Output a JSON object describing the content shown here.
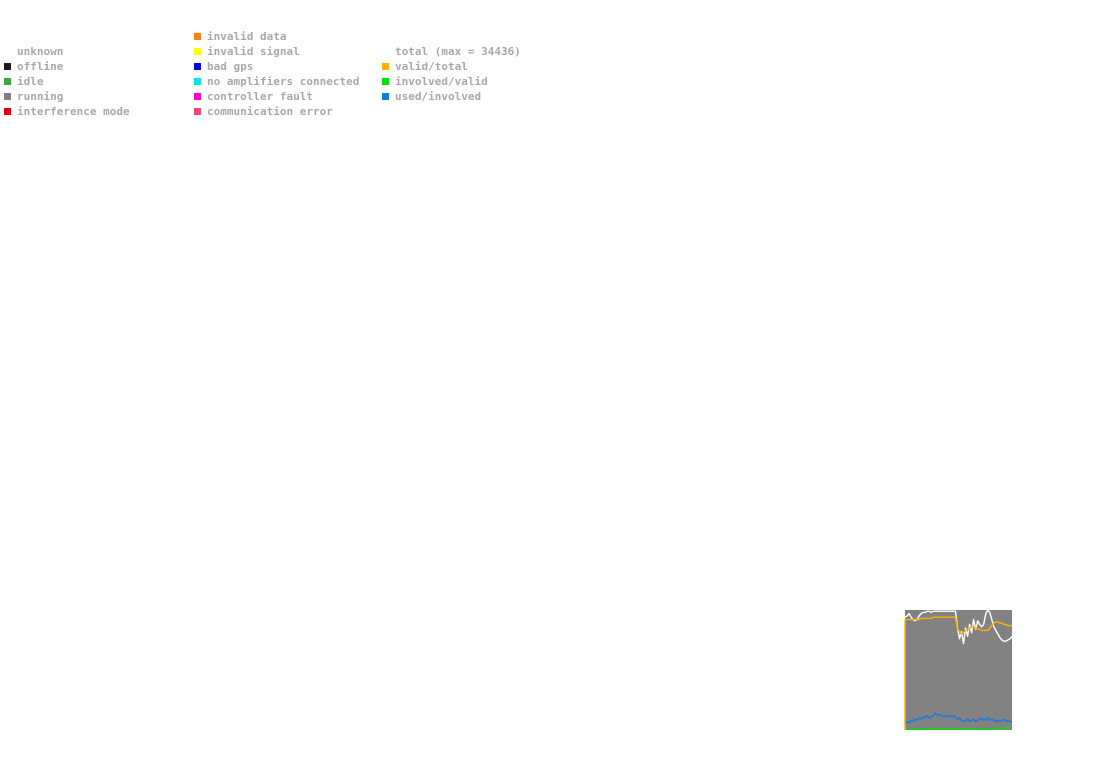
{
  "legend": {
    "status_column": [
      {
        "label": "unknown",
        "color": ""
      },
      {
        "label": "offline",
        "color": "#1a1a1a"
      },
      {
        "label": "idle",
        "color": "#3fa33f"
      },
      {
        "label": "running",
        "color": "#7f7f7f"
      },
      {
        "label": "interference mode",
        "color": "#e8000b"
      }
    ],
    "error_column": [
      {
        "label": "invalid data",
        "color": "#ff7f0e"
      },
      {
        "label": "invalid signal",
        "color": "#ffff00"
      },
      {
        "label": "bad gps",
        "color": "#0000e6"
      },
      {
        "label": "no amplifiers connected",
        "color": "#00e6e6"
      },
      {
        "label": "controller fault",
        "color": "#ff00cc"
      },
      {
        "label": "communication error",
        "color": "#f0457a"
      }
    ],
    "ratio_column": [
      {
        "label": "total (max = 34436)",
        "color": ""
      },
      {
        "label": "valid/total",
        "color": "#ffb000"
      },
      {
        "label": "involved/valid",
        "color": "#00e000"
      },
      {
        "label": "used/involved",
        "color": "#1878e0"
      }
    ]
  },
  "chart_data": {
    "type": "line",
    "background_status": "running",
    "background_color": "#828282",
    "x": [
      0,
      1,
      2,
      3,
      4,
      5,
      6,
      7,
      8,
      9,
      10,
      11,
      12,
      13,
      14,
      15,
      16,
      17,
      18,
      19,
      20,
      21,
      22,
      23,
      24,
      25,
      26,
      27,
      28,
      29,
      30,
      31,
      32,
      33,
      34,
      35,
      36,
      37,
      38,
      39,
      40,
      41,
      42,
      43,
      44,
      45,
      46,
      47,
      48,
      49,
      50,
      51,
      52,
      53
    ],
    "ylim": [
      0,
      1
    ],
    "series": [
      {
        "name": "total (max = 34436)",
        "color": "#ffffff",
        "values": [
          0.94,
          0.95,
          0.97,
          0.94,
          0.92,
          0.91,
          0.92,
          0.95,
          0.97,
          0.98,
          0.98,
          0.99,
          0.99,
          0.98,
          0.99,
          0.99,
          0.99,
          0.99,
          0.99,
          0.99,
          0.99,
          0.99,
          0.99,
          0.99,
          0.99,
          0.99,
          0.85,
          0.76,
          0.82,
          0.72,
          0.85,
          0.78,
          0.88,
          0.81,
          0.92,
          0.84,
          0.91,
          0.88,
          0.86,
          0.88,
          0.97,
          1.0,
          0.98,
          0.92,
          0.86,
          0.83,
          0.8,
          0.77,
          0.75,
          0.74,
          0.74,
          0.75,
          0.76,
          0.78
        ]
      },
      {
        "name": "valid/total",
        "color": "#ffb000",
        "values": [
          0.92,
          0.92,
          0.92,
          0.92,
          0.92,
          0.92,
          0.92,
          0.92,
          0.93,
          0.93,
          0.93,
          0.93,
          0.93,
          0.93,
          0.94,
          0.94,
          0.94,
          0.94,
          0.94,
          0.94,
          0.94,
          0.94,
          0.94,
          0.94,
          0.94,
          0.94,
          0.84,
          0.82,
          0.8,
          0.81,
          0.83,
          0.83,
          0.85,
          0.86,
          0.86,
          0.85,
          0.84,
          0.84,
          0.83,
          0.83,
          0.83,
          0.83,
          0.85,
          0.87,
          0.89,
          0.9,
          0.9,
          0.89,
          0.89,
          0.88,
          0.88,
          0.87,
          0.87,
          0.87
        ]
      },
      {
        "name": "involved/valid",
        "color": "#00e000",
        "values": [
          0.01,
          0.01,
          0.01,
          0.01,
          0.01,
          0.01,
          0.01,
          0.01,
          0.01,
          0.01,
          0.01,
          0.01,
          0.01,
          0.01,
          0.01,
          0.01,
          0.01,
          0.01,
          0.01,
          0.01,
          0.01,
          0.01,
          0.01,
          0.01,
          0.01,
          0.01,
          0.01,
          0.01,
          0.01,
          0.01,
          0.01,
          0.01,
          0.01,
          0.01,
          0.01,
          0.01,
          0.01,
          0.01,
          0.01,
          0.01,
          0.01,
          0.01,
          0.01,
          0.01,
          0.01,
          0.01,
          0.01,
          0.01,
          0.01,
          0.02,
          0.02,
          0.02,
          0.03,
          0.03
        ]
      },
      {
        "name": "used/involved",
        "color": "#1878e0",
        "values": [
          0.05,
          0.07,
          0.06,
          0.08,
          0.07,
          0.09,
          0.08,
          0.1,
          0.09,
          0.11,
          0.1,
          0.12,
          0.1,
          0.11,
          0.12,
          0.14,
          0.12,
          0.13,
          0.12,
          0.11,
          0.12,
          0.11,
          0.12,
          0.11,
          0.12,
          0.11,
          0.09,
          0.1,
          0.08,
          0.07,
          0.08,
          0.09,
          0.07,
          0.08,
          0.09,
          0.07,
          0.08,
          0.09,
          0.1,
          0.08,
          0.09,
          0.1,
          0.08,
          0.09,
          0.08,
          0.07,
          0.08,
          0.07,
          0.08,
          0.09,
          0.07,
          0.08,
          0.07,
          0.07
        ]
      }
    ]
  }
}
